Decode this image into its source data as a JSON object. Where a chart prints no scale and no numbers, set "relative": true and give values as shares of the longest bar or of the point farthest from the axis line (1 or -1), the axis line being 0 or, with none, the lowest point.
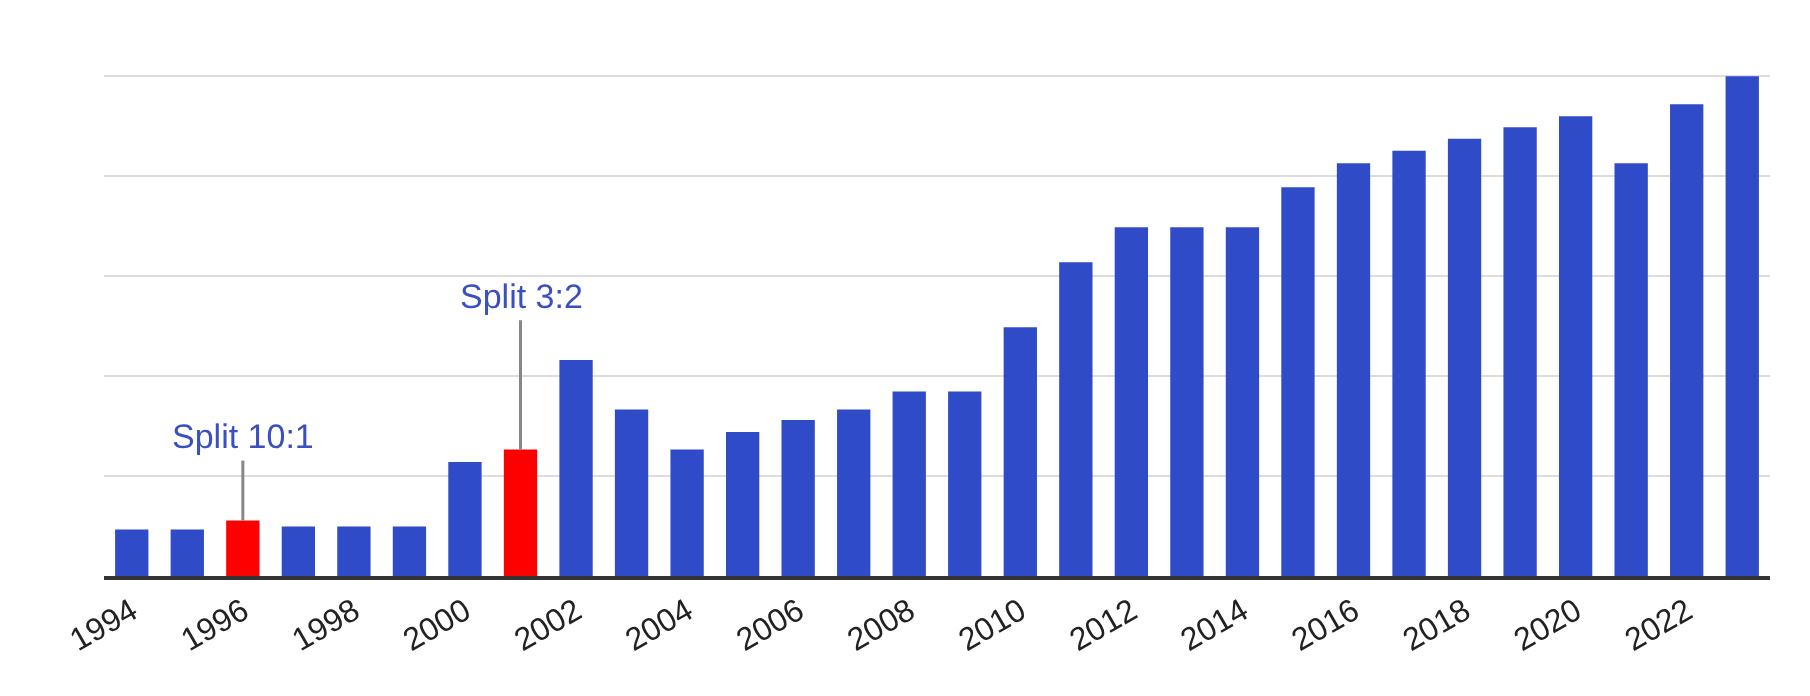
{
  "chart_data": {
    "type": "bar",
    "relative": true,
    "grid": "y",
    "x": [
      1994,
      1995,
      1996,
      1997,
      1998,
      1999,
      2000,
      2001,
      2002,
      2003,
      2004,
      2005,
      2006,
      2007,
      2008,
      2009,
      2010,
      2011,
      2012,
      2013,
      2014,
      2015,
      2016,
      2017,
      2018,
      2019,
      2020,
      2021,
      2022,
      2023
    ],
    "values": [
      0.093,
      0.093,
      0.111,
      0.099,
      0.099,
      0.099,
      0.228,
      0.253,
      0.432,
      0.333,
      0.253,
      0.288,
      0.312,
      0.333,
      0.369,
      0.369,
      0.498,
      0.628,
      0.698,
      0.698,
      0.698,
      0.778,
      0.826,
      0.851,
      0.875,
      0.898,
      0.92,
      0.826,
      0.944,
      1
    ],
    "colors": [
      "#304bc8",
      "#304bc8",
      "#ff0000",
      "#304bc8",
      "#304bc8",
      "#304bc8",
      "#304bc8",
      "#ff0000",
      "#304bc8",
      "#304bc8",
      "#304bc8",
      "#304bc8",
      "#304bc8",
      "#304bc8",
      "#304bc8",
      "#304bc8",
      "#304bc8",
      "#304bc8",
      "#304bc8",
      "#304bc8",
      "#304bc8",
      "#304bc8",
      "#304bc8",
      "#304bc8",
      "#304bc8",
      "#304bc8",
      "#304bc8",
      "#304bc8",
      "#304bc8",
      "#304bc8"
    ],
    "xlim": [
      1993.5,
      2023.5
    ],
    "xticks": [
      1994,
      1996,
      1998,
      2000,
      2002,
      2004,
      2006,
      2008,
      2010,
      2012,
      2014,
      2016,
      2018,
      2020,
      2022
    ],
    "annotations": [
      {
        "text": "Split 10:1",
        "x": 1996,
        "y": 0.111
      },
      {
        "text": "Split 3:2",
        "x": 2001,
        "y": 0.253
      }
    ]
  }
}
